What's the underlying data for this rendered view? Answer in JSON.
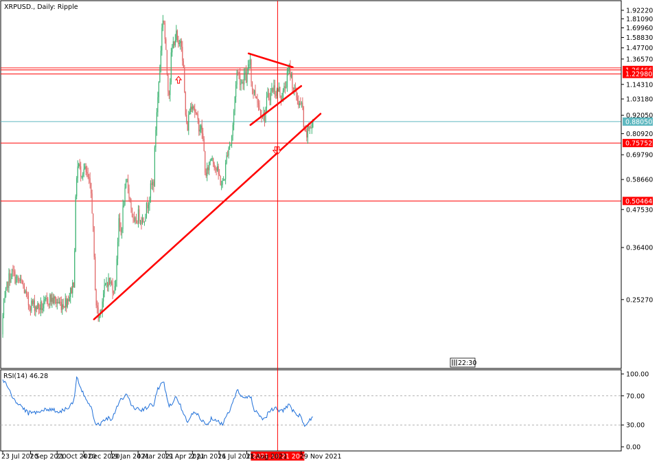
{
  "window": {
    "title": "XRPUSD., Daily:  Ripple",
    "time_badge": "22:30"
  },
  "colors": {
    "bull": "#3cb371",
    "bear": "#e06666",
    "line": "#ff0000",
    "cyan": "#5fb8c0",
    "rsi": "#1e6fd9",
    "crosshair_label_bg": "#ff0000"
  },
  "chart_data": [
    {
      "type": "candlestick",
      "title": "XRPUSD., Daily:  Ripple",
      "symbol": "XRPUSD.",
      "timeframe": "Daily",
      "ylim": [
        0.17,
        1.95
      ],
      "price_ticks": [
        "1.92220",
        "1.81090",
        "1.69960",
        "1.58830",
        "1.47700",
        "1.36570",
        "1.14310",
        "1.03180",
        "0.92050",
        "0.80920",
        "0.69790",
        "0.58660",
        "0.47530",
        "0.36400",
        "0.25270"
      ],
      "date_ticks": [
        "23 Jul 2020",
        "7 Sep 2020",
        "21 Oct 2020",
        "4 Dec 2020",
        "19 Jan 2021",
        "4 Mar 2021",
        "19 Apr 2021",
        "2 Jun 2021",
        "16 Jul 2021",
        "31 Aug 2021",
        "29 Nov 2021"
      ],
      "horizontal_levels": [
        {
          "label": "1.26466",
          "value": 1.26466
        },
        {
          "label": "1.22980",
          "value": 1.2298
        },
        {
          "label": "0.75752",
          "value": 0.75752
        },
        {
          "label": "0.50464",
          "value": 0.50464
        }
      ],
      "current_price": {
        "label": "0.88050",
        "value": 0.8805
      },
      "crosshair": {
        "date_label": "2021.10.21 20:00"
      },
      "trendlines": [
        {
          "from": {
            "date": "2020-12-21",
            "price": 0.22
          },
          "to": {
            "date": "2021-12-31",
            "price": 0.93
          }
        },
        {
          "from": {
            "date": "2021-09-03",
            "price": 1.42
          },
          "to": {
            "date": "2021-11-15",
            "price": 1.29
          }
        },
        {
          "from": {
            "date": "2021-09-06",
            "price": 0.86
          },
          "to": {
            "date": "2021-11-29",
            "price": 1.13
          }
        }
      ],
      "arrows": [
        {
          "date": "2021-05-10",
          "price": 1.18,
          "direction": "up"
        },
        {
          "date": "2021-10-18",
          "price": 0.72,
          "direction": "down"
        },
        {
          "date": "2021-10-22",
          "price": 0.72,
          "direction": "down"
        }
      ],
      "ohlc_path": [
        [
          "2020-07-16",
          0.198
        ],
        [
          "2020-07-23",
          0.225
        ],
        [
          "2020-08-01",
          0.29
        ],
        [
          "2020-08-08",
          0.305
        ],
        [
          "2020-08-15",
          0.29
        ],
        [
          "2020-08-25",
          0.28
        ],
        [
          "2020-09-03",
          0.245
        ],
        [
          "2020-09-10",
          0.245
        ],
        [
          "2020-09-18",
          0.24
        ],
        [
          "2020-09-28",
          0.24
        ],
        [
          "2020-10-08",
          0.255
        ],
        [
          "2020-10-18",
          0.25
        ],
        [
          "2020-10-28",
          0.245
        ],
        [
          "2020-11-05",
          0.25
        ],
        [
          "2020-11-12",
          0.265
        ],
        [
          "2020-11-18",
          0.29
        ],
        [
          "2020-11-22",
          0.6
        ],
        [
          "2020-11-25",
          0.66
        ],
        [
          "2020-11-28",
          0.62
        ],
        [
          "2020-12-05",
          0.63
        ],
        [
          "2020-12-12",
          0.58
        ],
        [
          "2020-12-17",
          0.52
        ],
        [
          "2020-12-22",
          0.3
        ],
        [
          "2020-12-25",
          0.24
        ],
        [
          "2020-12-29",
          0.22
        ],
        [
          "2021-01-05",
          0.26
        ],
        [
          "2021-01-12",
          0.29
        ],
        [
          "2021-01-19",
          0.28
        ],
        [
          "2021-01-25",
          0.27
        ],
        [
          "2021-01-31",
          0.43
        ],
        [
          "2021-02-04",
          0.4
        ],
        [
          "2021-02-08",
          0.5
        ],
        [
          "2021-02-14",
          0.58
        ],
        [
          "2021-02-18",
          0.52
        ],
        [
          "2021-02-25",
          0.42
        ],
        [
          "2021-03-05",
          0.46
        ],
        [
          "2021-03-12",
          0.44
        ],
        [
          "2021-03-18",
          0.48
        ],
        [
          "2021-03-25",
          0.55
        ],
        [
          "2021-03-30",
          0.58
        ],
        [
          "2021-04-03",
          0.9
        ],
        [
          "2021-04-06",
          1.05
        ],
        [
          "2021-04-10",
          1.38
        ],
        [
          "2021-04-13",
          1.75
        ],
        [
          "2021-04-15",
          1.88
        ],
        [
          "2021-04-18",
          1.52
        ],
        [
          "2021-04-22",
          1.15
        ],
        [
          "2021-04-25",
          1.08
        ],
        [
          "2021-04-28",
          1.4
        ],
        [
          "2021-05-02",
          1.55
        ],
        [
          "2021-05-06",
          1.62
        ],
        [
          "2021-05-10",
          1.45
        ],
        [
          "2021-05-14",
          1.62
        ],
        [
          "2021-05-18",
          1.28
        ],
        [
          "2021-05-21",
          0.95
        ],
        [
          "2021-05-24",
          0.82
        ],
        [
          "2021-05-28",
          0.95
        ],
        [
          "2021-06-02",
          1.02
        ],
        [
          "2021-06-06",
          0.95
        ],
        [
          "2021-06-10",
          0.88
        ],
        [
          "2021-06-14",
          0.85
        ],
        [
          "2021-06-18",
          0.82
        ],
        [
          "2021-06-22",
          0.68
        ],
        [
          "2021-06-24",
          0.58
        ],
        [
          "2021-06-28",
          0.64
        ],
        [
          "2021-07-04",
          0.7
        ],
        [
          "2021-07-10",
          0.64
        ],
        [
          "2021-07-16",
          0.6
        ],
        [
          "2021-07-21",
          0.56
        ],
        [
          "2021-07-25",
          0.6
        ],
        [
          "2021-07-31",
          0.74
        ],
        [
          "2021-08-05",
          0.76
        ],
        [
          "2021-08-09",
          0.9
        ],
        [
          "2021-08-12",
          1.1
        ],
        [
          "2021-08-14",
          1.25
        ],
        [
          "2021-08-18",
          1.22
        ],
        [
          "2021-08-22",
          1.15
        ],
        [
          "2021-08-27",
          1.22
        ],
        [
          "2021-08-31",
          1.18
        ],
        [
          "2021-09-03",
          1.3
        ],
        [
          "2021-09-06",
          1.38
        ],
        [
          "2021-09-08",
          1.12
        ],
        [
          "2021-09-12",
          1.08
        ],
        [
          "2021-09-17",
          1.05
        ],
        [
          "2021-09-21",
          0.96
        ],
        [
          "2021-09-25",
          0.95
        ],
        [
          "2021-09-29",
          0.9
        ],
        [
          "2021-10-02",
          0.99
        ],
        [
          "2021-10-05",
          1.05
        ],
        [
          "2021-10-10",
          1.08
        ],
        [
          "2021-10-14",
          1.12
        ],
        [
          "2021-10-19",
          1.08
        ],
        [
          "2021-10-23",
          1.1
        ],
        [
          "2021-10-27",
          1.05
        ],
        [
          "2021-10-31",
          1.08
        ],
        [
          "2021-11-05",
          1.18
        ],
        [
          "2021-11-09",
          1.28
        ],
        [
          "2021-11-12",
          1.22
        ],
        [
          "2021-11-16",
          1.12
        ],
        [
          "2021-11-20",
          1.06
        ],
        [
          "2021-11-24",
          1.02
        ],
        [
          "2021-11-28",
          0.98
        ],
        [
          "2021-12-01",
          0.98
        ],
        [
          "2021-12-04",
          0.8
        ],
        [
          "2021-12-08",
          0.8
        ],
        [
          "2021-12-13",
          0.86
        ],
        [
          "2021-12-16",
          0.84
        ],
        [
          "2021-12-20",
          0.88
        ]
      ]
    },
    {
      "type": "line",
      "title": "RSI(14) 46.28",
      "name": "RSI(14)",
      "value": 46.28,
      "ylim": [
        0,
        100
      ],
      "ticks": [
        "100.00",
        "70.00",
        "30.00",
        "0.00"
      ],
      "levels": [
        70,
        30
      ],
      "path": [
        [
          "2020-07-16",
          80
        ],
        [
          "2020-07-23",
          92
        ],
        [
          "2020-08-01",
          82
        ],
        [
          "2020-08-10",
          64
        ],
        [
          "2020-08-20",
          58
        ],
        [
          "2020-09-03",
          46
        ],
        [
          "2020-09-15",
          48
        ],
        [
          "2020-09-28",
          50
        ],
        [
          "2020-10-10",
          52
        ],
        [
          "2020-10-25",
          48
        ],
        [
          "2020-11-10",
          55
        ],
        [
          "2020-11-18",
          62
        ],
        [
          "2020-11-23",
          98
        ],
        [
          "2020-11-28",
          80
        ],
        [
          "2020-12-08",
          66
        ],
        [
          "2020-12-16",
          56
        ],
        [
          "2020-12-24",
          32
        ],
        [
          "2020-12-30",
          30
        ],
        [
          "2021-01-10",
          40
        ],
        [
          "2021-01-20",
          38
        ],
        [
          "2021-01-31",
          62
        ],
        [
          "2021-02-08",
          68
        ],
        [
          "2021-02-14",
          72
        ],
        [
          "2021-02-22",
          55
        ],
        [
          "2021-03-03",
          52
        ],
        [
          "2021-03-12",
          50
        ],
        [
          "2021-03-22",
          56
        ],
        [
          "2021-03-30",
          58
        ],
        [
          "2021-04-06",
          80
        ],
        [
          "2021-04-14",
          92
        ],
        [
          "2021-04-20",
          72
        ],
        [
          "2021-04-25",
          55
        ],
        [
          "2021-05-05",
          68
        ],
        [
          "2021-05-12",
          60
        ],
        [
          "2021-05-18",
          45
        ],
        [
          "2021-05-24",
          34
        ],
        [
          "2021-06-05",
          48
        ],
        [
          "2021-06-15",
          40
        ],
        [
          "2021-06-24",
          30
        ],
        [
          "2021-07-05",
          40
        ],
        [
          "2021-07-15",
          36
        ],
        [
          "2021-07-22",
          30
        ],
        [
          "2021-07-31",
          46
        ],
        [
          "2021-08-10",
          65
        ],
        [
          "2021-08-15",
          78
        ],
        [
          "2021-08-24",
          66
        ],
        [
          "2021-09-06",
          70
        ],
        [
          "2021-09-12",
          52
        ],
        [
          "2021-09-22",
          42
        ],
        [
          "2021-09-29",
          38
        ],
        [
          "2021-10-08",
          50
        ],
        [
          "2021-10-19",
          52
        ],
        [
          "2021-10-27",
          48
        ],
        [
          "2021-11-08",
          58
        ],
        [
          "2021-11-18",
          46
        ],
        [
          "2021-11-28",
          42
        ],
        [
          "2021-12-04",
          28
        ],
        [
          "2021-12-12",
          34
        ],
        [
          "2021-12-20",
          46
        ]
      ]
    }
  ]
}
